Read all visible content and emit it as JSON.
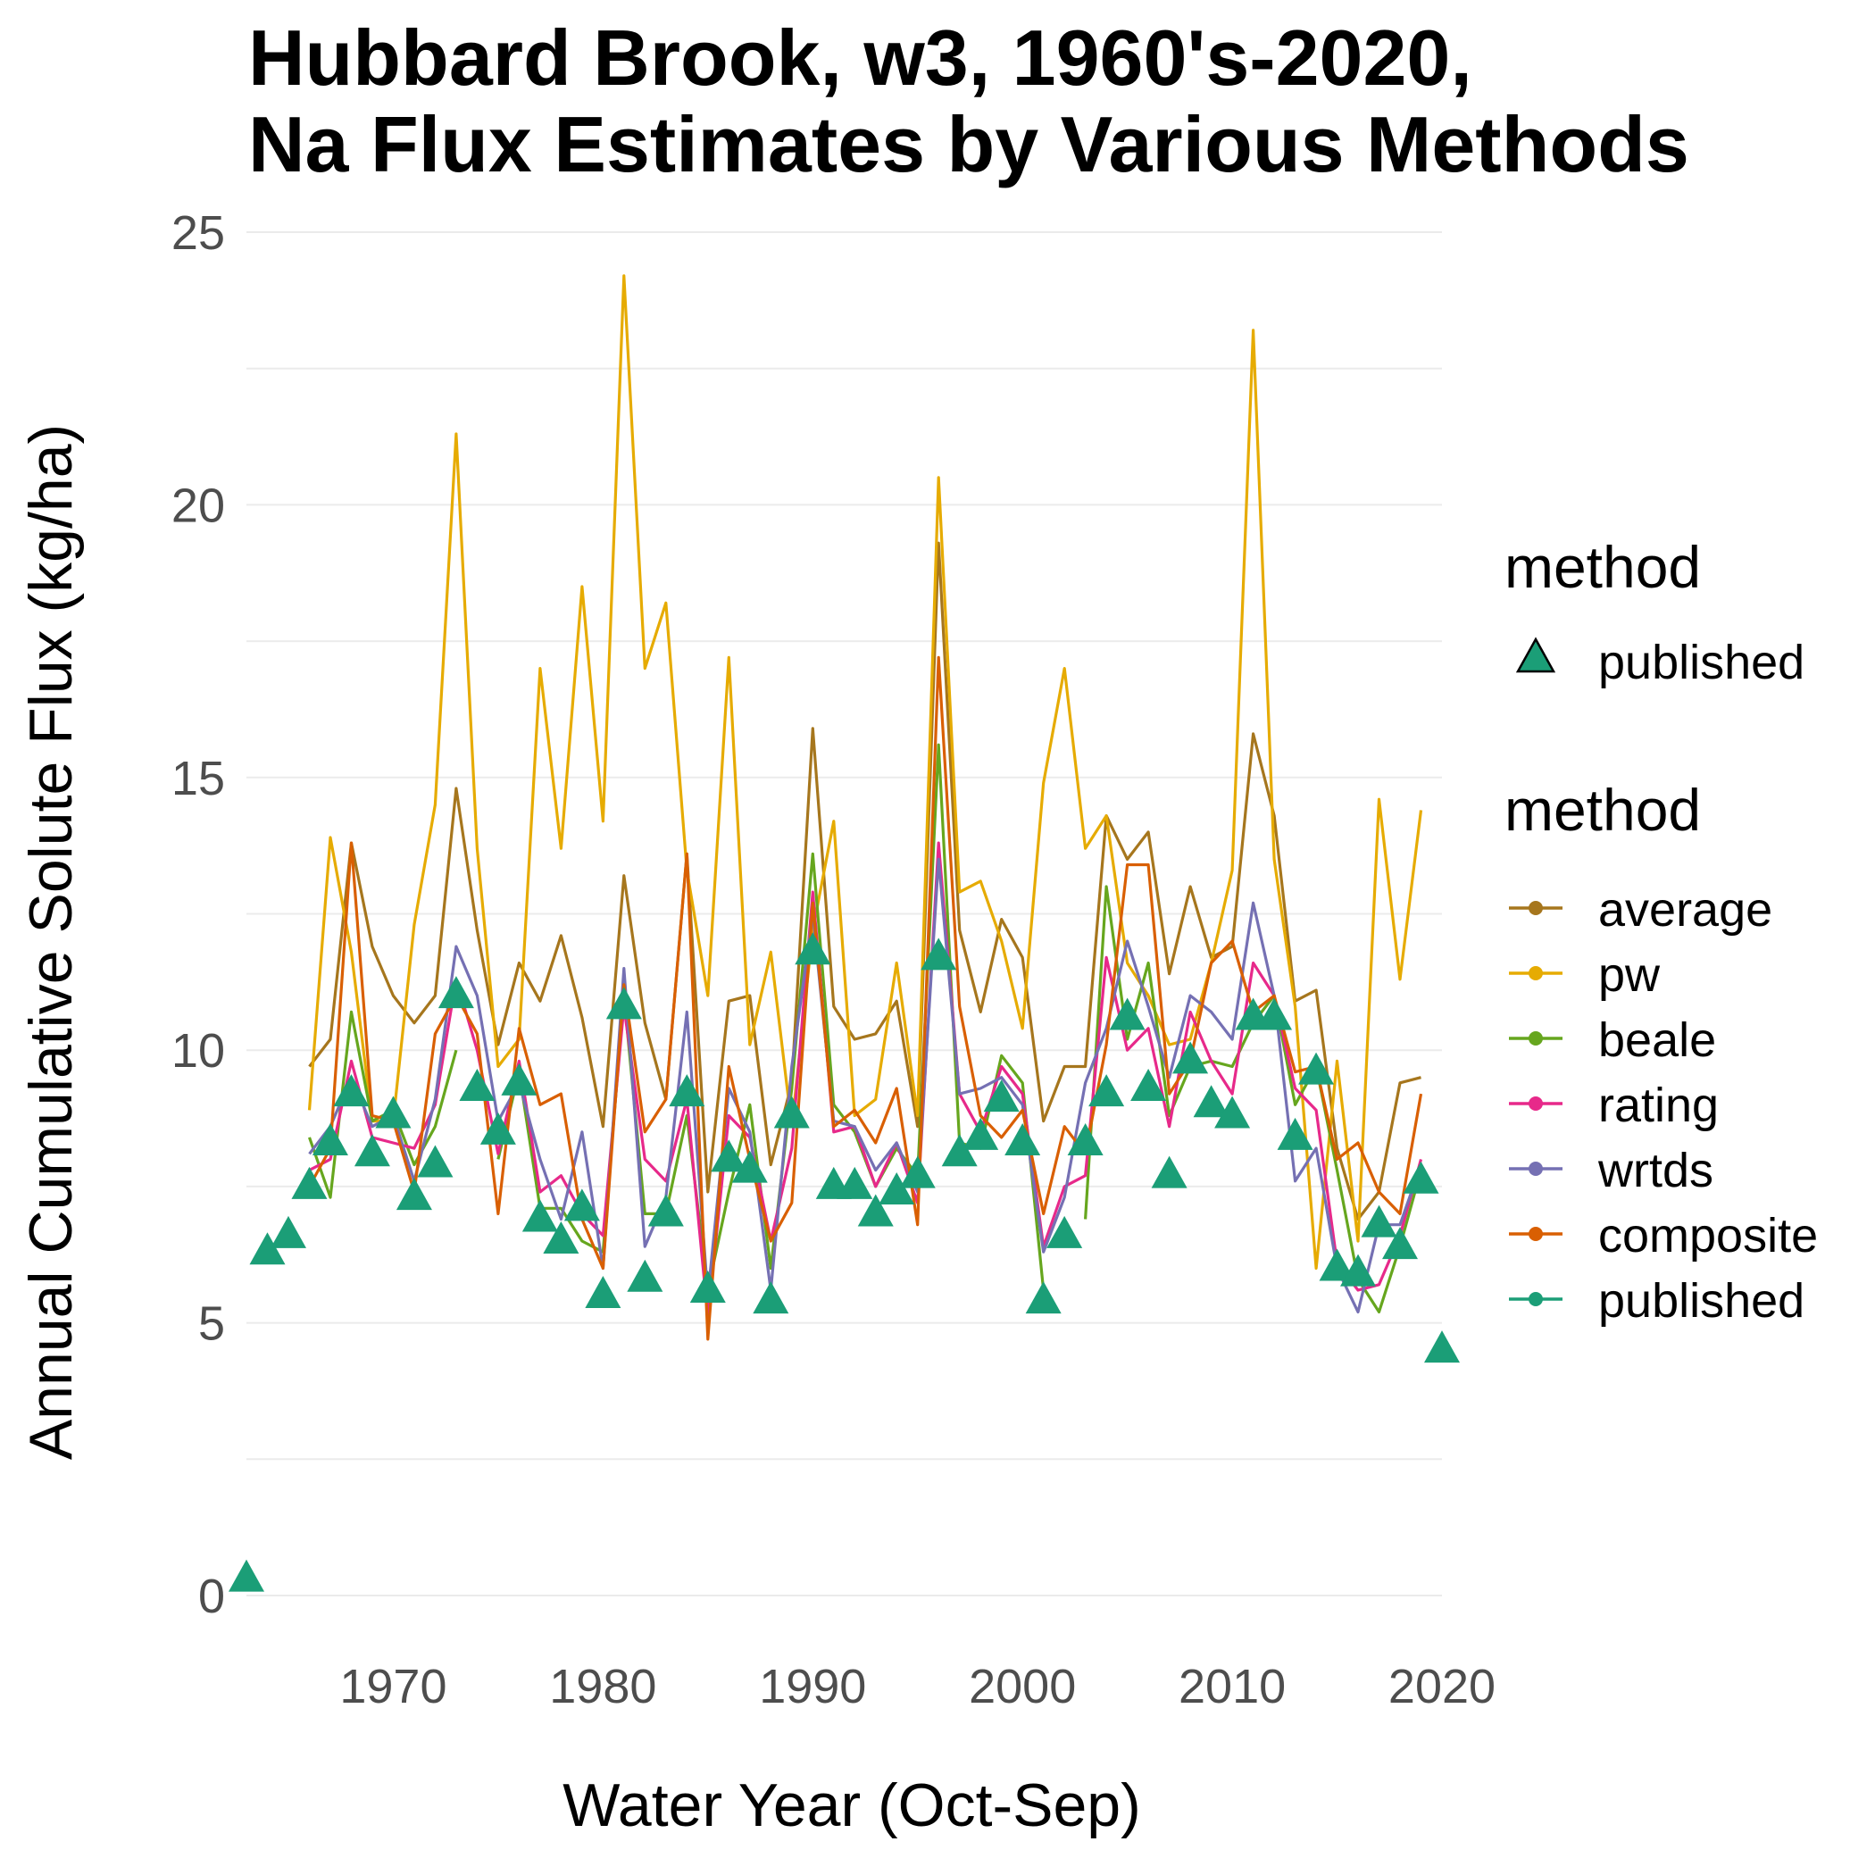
{
  "chart_data": {
    "type": "line",
    "title": [
      "Hubbard Brook, w3, 1960's-2020,",
      "Na Flux Estimates by Various Methods"
    ],
    "xlabel": "Water Year (Oct-Sep)",
    "ylabel": "Annual Cumulative Solute Flux (kg/ha)",
    "xlim": [
      1963,
      2020
    ],
    "ylim": [
      0,
      25
    ],
    "x_ticks": [
      1970,
      1980,
      1990,
      2000,
      2010,
      2020
    ],
    "y_ticks": [
      0,
      5,
      10,
      15,
      20,
      25
    ],
    "grid": true,
    "legend_placement": "right",
    "points_legend": {
      "title": "method",
      "entries": [
        "published"
      ]
    },
    "lines_legend": {
      "title": "method",
      "entries": [
        "average",
        "pw",
        "beale",
        "rating",
        "wrtds",
        "composite",
        "published"
      ]
    },
    "colors": {
      "average": "#a6761d",
      "pw": "#e6ab02",
      "beale": "#66a61e",
      "rating": "#e7298a",
      "wrtds": "#7570b3",
      "composite": "#d95f02",
      "published": "#1b9e77"
    },
    "x": [
      1966,
      1967,
      1968,
      1969,
      1970,
      1971,
      1972,
      1973,
      1974,
      1975,
      1976,
      1977,
      1978,
      1979,
      1980,
      1981,
      1982,
      1983,
      1984,
      1985,
      1986,
      1987,
      1988,
      1989,
      1990,
      1991,
      1992,
      1993,
      1994,
      1995,
      1996,
      1997,
      1998,
      1999,
      2000,
      2001,
      2002,
      2003,
      2004,
      2005,
      2006,
      2007,
      2008,
      2009,
      2010,
      2011,
      2012,
      2013,
      2014,
      2015,
      2016,
      2017,
      2018,
      2019
    ],
    "series": [
      {
        "name": "average",
        "values": [
          9.7,
          10.2,
          13.8,
          11.9,
          11.0,
          10.5,
          11.0,
          14.8,
          12.2,
          10.1,
          11.6,
          10.9,
          12.1,
          10.6,
          8.6,
          13.2,
          10.5,
          9.1,
          13.6,
          7.4,
          10.9,
          11.0,
          7.9,
          9.4,
          15.9,
          10.8,
          10.2,
          10.3,
          10.9,
          8.6,
          19.3,
          12.2,
          10.7,
          12.4,
          11.7,
          8.7,
          9.7,
          9.7,
          14.3,
          13.5,
          14.0,
          11.4,
          13.0,
          11.7,
          11.9,
          15.8,
          14.3,
          10.9,
          11.1,
          8.2,
          6.9,
          7.4,
          9.4,
          9.5
        ]
      },
      {
        "name": "pw",
        "values": [
          8.9,
          13.9,
          11.8,
          8.7,
          8.7,
          12.3,
          14.5,
          21.3,
          13.7,
          9.7,
          10.2,
          17.0,
          13.7,
          18.5,
          14.2,
          24.2,
          17.0,
          18.2,
          13.3,
          11.0,
          17.2,
          10.1,
          11.8,
          8.6,
          12.2,
          14.2,
          8.8,
          9.1,
          11.6,
          8.8,
          20.5,
          12.9,
          13.1,
          12.0,
          10.4,
          14.9,
          17.0,
          13.7,
          14.3,
          11.6,
          11.0,
          10.1,
          10.2,
          11.6,
          13.3,
          23.2,
          13.5,
          10.8,
          6.0,
          9.8,
          6.5,
          14.6,
          11.3,
          14.4
        ]
      },
      {
        "name": "beale",
        "values": [
          8.4,
          7.3,
          10.7,
          8.7,
          8.9,
          7.9,
          8.6,
          10.0,
          null,
          8.0,
          9.6,
          7.1,
          7.1,
          6.5,
          6.3,
          11.0,
          7.0,
          7.0,
          8.8,
          5.6,
          7.4,
          9.0,
          6.0,
          9.3,
          13.6,
          9.0,
          8.5,
          7.5,
          8.2,
          7.7,
          15.6,
          8.3,
          8.2,
          9.9,
          9.4,
          5.6,
          null,
          6.9,
          13.0,
          10.2,
          11.6,
          8.8,
          9.7,
          9.8,
          9.7,
          10.5,
          11.0,
          9.0,
          9.7,
          7.8,
          5.8,
          5.2,
          6.4,
          7.8
        ]
      },
      {
        "name": "rating",
        "values": [
          7.8,
          8.0,
          9.8,
          8.4,
          8.3,
          8.2,
          9.0,
          11.3,
          10.0,
          8.1,
          9.8,
          7.4,
          7.7,
          7.0,
          6.6,
          10.8,
          8.0,
          7.6,
          9.1,
          5.1,
          8.8,
          8.4,
          6.5,
          8.2,
          12.9,
          8.5,
          8.6,
          7.5,
          8.3,
          7.2,
          13.8,
          9.2,
          8.5,
          9.7,
          9.2,
          6.4,
          7.5,
          7.7,
          11.7,
          10.0,
          10.4,
          8.6,
          10.7,
          9.8,
          9.2,
          11.6,
          11.0,
          9.3,
          8.9,
          6.1,
          5.6,
          5.7,
          6.6,
          8.0
        ]
      },
      {
        "name": "wrtds",
        "values": [
          8.1,
          8.6,
          9.5,
          8.6,
          8.8,
          7.6,
          9.1,
          11.9,
          11.0,
          8.7,
          9.4,
          8.0,
          6.9,
          8.5,
          6.0,
          11.5,
          6.4,
          7.3,
          10.7,
          5.5,
          9.3,
          8.5,
          5.6,
          9.7,
          12.5,
          8.7,
          8.6,
          7.8,
          8.3,
          7.4,
          13.5,
          9.2,
          9.3,
          9.5,
          9.0,
          6.3,
          7.3,
          9.4,
          10.4,
          12.0,
          10.8,
          9.5,
          11.0,
          10.7,
          10.2,
          12.7,
          11.0,
          7.6,
          8.2,
          6.0,
          5.2,
          6.8,
          6.8,
          7.9
        ]
      },
      {
        "name": "composite",
        "values": [
          7.5,
          8.2,
          13.8,
          8.8,
          8.7,
          7.4,
          10.3,
          11.0,
          10.3,
          7.0,
          10.4,
          9.0,
          9.2,
          6.9,
          6.0,
          11.2,
          8.5,
          9.1,
          13.6,
          4.7,
          9.7,
          8.0,
          6.5,
          7.2,
          12.7,
          8.6,
          8.9,
          8.3,
          9.3,
          6.8,
          17.2,
          10.8,
          8.8,
          8.4,
          8.9,
          7.0,
          8.6,
          8.1,
          10.1,
          13.4,
          13.4,
          9.2,
          9.8,
          11.6,
          12.0,
          10.7,
          11.0,
          9.6,
          9.7,
          8.0,
          8.3,
          7.4,
          7.0,
          9.2
        ]
      }
    ],
    "published_points": {
      "name": "published",
      "x": [
        1963,
        1964,
        1965,
        1966,
        1967,
        1968,
        1969,
        1970,
        1971,
        1972,
        1973,
        1974,
        1975,
        1976,
        1977,
        1978,
        1979,
        1980,
        1981,
        1982,
        1983,
        1984,
        1985,
        1986,
        1987,
        1988,
        1989,
        1990,
        1991,
        1992,
        1993,
        1994,
        1995,
        1996,
        1997,
        1998,
        1999,
        2000,
        2001,
        2002,
        2003,
        2004,
        2005,
        2006,
        2007,
        2008,
        2009,
        2010,
        2011,
        2012,
        2013,
        2014,
        2015,
        2016,
        2017,
        2018,
        2019,
        2020
      ],
      "values": [
        0.3,
        6.3,
        6.6,
        7.5,
        8.3,
        9.2,
        8.1,
        8.8,
        7.3,
        7.9,
        11.0,
        9.3,
        8.5,
        9.4,
        6.9,
        6.5,
        7.1,
        5.5,
        10.8,
        5.8,
        7.0,
        9.2,
        5.6,
        8.0,
        7.8,
        5.4,
        8.8,
        11.8,
        7.5,
        7.5,
        7.0,
        7.4,
        7.7,
        11.7,
        8.1,
        8.4,
        9.1,
        8.3,
        5.4,
        6.6,
        8.3,
        9.2,
        10.6,
        9.3,
        7.7,
        9.8,
        9.0,
        8.8,
        10.6,
        10.6,
        8.4,
        9.6,
        6.0,
        5.9,
        6.8,
        6.4,
        7.6,
        4.5
      ]
    }
  }
}
